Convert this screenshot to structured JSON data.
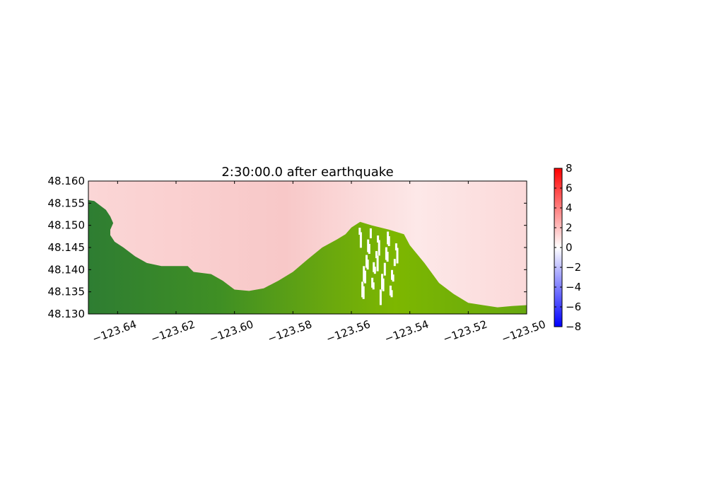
{
  "chart_data": [
    {
      "type": "heatmap",
      "title": "2:30:00.0 after earthquake",
      "xlabel": "",
      "ylabel": "",
      "xlim": [
        -123.65,
        -123.5
      ],
      "ylim": [
        48.13,
        48.16
      ],
      "xticks": [
        -123.64,
        -123.62,
        -123.6,
        -123.58,
        -123.56,
        -123.54,
        -123.52,
        -123.5
      ],
      "xtick_labels": [
        "−123.64",
        "−123.62",
        "−123.60",
        "−123.58",
        "−123.56",
        "−123.54",
        "−123.52",
        "−123.50"
      ],
      "yticks": [
        48.13,
        48.135,
        48.14,
        48.145,
        48.15,
        48.155,
        48.16
      ],
      "ytick_labels": [
        "48.130",
        "48.135",
        "48.140",
        "48.145",
        "48.150",
        "48.155",
        "48.160"
      ],
      "grid": false,
      "field": "surface elevation (water), topography (land)",
      "water_color": "#f9cccc",
      "land_colors": [
        "#2e7d32",
        "#4a9a1e",
        "#7db700"
      ],
      "shoreline": [
        [
          -123.65,
          48.1557
        ],
        [
          -123.648,
          48.1555
        ],
        [
          -123.646,
          48.1545
        ],
        [
          -123.644,
          48.1535
        ],
        [
          -123.6425,
          48.152
        ],
        [
          -123.6415,
          48.1505
        ],
        [
          -123.6425,
          48.149
        ],
        [
          -123.6425,
          48.1478
        ],
        [
          -123.641,
          48.1463
        ],
        [
          -123.638,
          48.145
        ],
        [
          -123.634,
          48.143
        ],
        [
          -123.63,
          48.1415
        ],
        [
          -123.625,
          48.1408
        ],
        [
          -123.62,
          48.1408
        ],
        [
          -123.616,
          48.1408
        ],
        [
          -123.614,
          48.1395
        ],
        [
          -123.608,
          48.139
        ],
        [
          -123.604,
          48.1375
        ],
        [
          -123.6,
          48.1355
        ],
        [
          -123.595,
          48.1352
        ],
        [
          -123.59,
          48.1358
        ],
        [
          -123.585,
          48.1375
        ],
        [
          -123.58,
          48.1395
        ],
        [
          -123.575,
          48.1423
        ],
        [
          -123.57,
          48.145
        ],
        [
          -123.565,
          48.1468
        ],
        [
          -123.562,
          48.148
        ],
        [
          -123.56,
          48.1495
        ],
        [
          -123.557,
          48.1508
        ],
        [
          -123.553,
          48.15
        ],
        [
          -123.547,
          48.149
        ],
        [
          -123.542,
          48.148
        ],
        [
          -123.54,
          48.1455
        ],
        [
          -123.535,
          48.1415
        ],
        [
          -123.53,
          48.137
        ],
        [
          -123.525,
          48.1345
        ],
        [
          -123.52,
          48.1325
        ],
        [
          -123.515,
          48.132
        ],
        [
          -123.51,
          48.1315
        ],
        [
          -123.505,
          48.1318
        ],
        [
          -123.5,
          48.132
        ]
      ]
    },
    {
      "type": "colorbar",
      "colormap": [
        "#0000ff",
        "#ffffff",
        "#ff0000"
      ],
      "vlim": [
        -8,
        8
      ],
      "ticks": [
        -8,
        -6,
        -4,
        -2,
        0,
        2,
        4,
        6,
        8
      ],
      "tick_labels": [
        "−8",
        "−6",
        "−4",
        "−2",
        "0",
        "2",
        "4",
        "6",
        "8"
      ]
    }
  ]
}
